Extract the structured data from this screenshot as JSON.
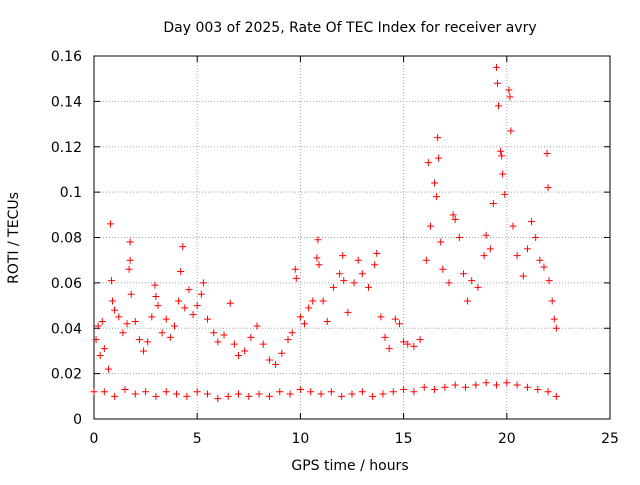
{
  "chart_data": {
    "type": "scatter",
    "title": "Day 003 of 2025, Rate Of TEC Index for receiver avry",
    "xlabel": "GPS time / hours",
    "ylabel": "ROTI / TECUs",
    "xlim": [
      0,
      25
    ],
    "ylim": [
      0,
      0.16
    ],
    "xticks": [
      0,
      5,
      10,
      15,
      20,
      25
    ],
    "xtick_labels": [
      "0",
      "5",
      "10",
      "15",
      "20",
      "25"
    ],
    "yticks": [
      0,
      0.02,
      0.04,
      0.06,
      0.08,
      0.1,
      0.12,
      0.14,
      0.16
    ],
    "ytick_labels": [
      "0",
      "0.02",
      "0.04",
      "0.06",
      "0.08",
      "0.1",
      "0.12",
      "0.14",
      "0.16"
    ],
    "grid": true,
    "legend": "none",
    "marker": "plus",
    "color": "#ff0000",
    "series": [
      {
        "points": [
          [
            0.0,
            0.012
          ],
          [
            0.1,
            0.035
          ],
          [
            0.2,
            0.041
          ],
          [
            0.3,
            0.028
          ],
          [
            0.4,
            0.043
          ],
          [
            0.5,
            0.031
          ],
          [
            0.7,
            0.022
          ],
          [
            0.8,
            0.086
          ],
          [
            0.85,
            0.061
          ],
          [
            0.9,
            0.052
          ],
          [
            1.0,
            0.048
          ],
          [
            1.2,
            0.045
          ],
          [
            1.4,
            0.038
          ],
          [
            1.6,
            0.042
          ],
          [
            1.75,
            0.078
          ],
          [
            1.75,
            0.07
          ],
          [
            1.7,
            0.066
          ],
          [
            1.8,
            0.055
          ],
          [
            2.0,
            0.043
          ],
          [
            2.2,
            0.035
          ],
          [
            2.4,
            0.03
          ],
          [
            2.6,
            0.034
          ],
          [
            2.8,
            0.045
          ],
          [
            2.95,
            0.059
          ],
          [
            3.0,
            0.054
          ],
          [
            3.1,
            0.05
          ],
          [
            3.3,
            0.038
          ],
          [
            3.5,
            0.044
          ],
          [
            3.7,
            0.036
          ],
          [
            3.9,
            0.041
          ],
          [
            4.1,
            0.052
          ],
          [
            4.2,
            0.065
          ],
          [
            4.3,
            0.076
          ],
          [
            4.4,
            0.049
          ],
          [
            4.6,
            0.057
          ],
          [
            4.8,
            0.046
          ],
          [
            5.0,
            0.05
          ],
          [
            5.2,
            0.055
          ],
          [
            5.3,
            0.06
          ],
          [
            5.5,
            0.044
          ],
          [
            5.8,
            0.038
          ],
          [
            6.0,
            0.034
          ],
          [
            6.3,
            0.037
          ],
          [
            6.6,
            0.051
          ],
          [
            6.8,
            0.033
          ],
          [
            7.0,
            0.028
          ],
          [
            7.3,
            0.03
          ],
          [
            7.6,
            0.036
          ],
          [
            7.9,
            0.041
          ],
          [
            8.2,
            0.033
          ],
          [
            8.5,
            0.026
          ],
          [
            8.8,
            0.024
          ],
          [
            9.1,
            0.029
          ],
          [
            9.4,
            0.035
          ],
          [
            9.6,
            0.038
          ],
          [
            9.75,
            0.066
          ],
          [
            9.8,
            0.062
          ],
          [
            10.0,
            0.045
          ],
          [
            10.2,
            0.042
          ],
          [
            10.4,
            0.049
          ],
          [
            10.6,
            0.052
          ],
          [
            10.8,
            0.071
          ],
          [
            10.85,
            0.079
          ],
          [
            10.9,
            0.068
          ],
          [
            11.1,
            0.052
          ],
          [
            11.3,
            0.043
          ],
          [
            11.6,
            0.058
          ],
          [
            11.9,
            0.064
          ],
          [
            12.05,
            0.072
          ],
          [
            12.1,
            0.061
          ],
          [
            12.3,
            0.047
          ],
          [
            12.6,
            0.06
          ],
          [
            12.8,
            0.07
          ],
          [
            13.0,
            0.064
          ],
          [
            13.3,
            0.058
          ],
          [
            13.6,
            0.068
          ],
          [
            13.7,
            0.073
          ],
          [
            13.9,
            0.045
          ],
          [
            14.1,
            0.036
          ],
          [
            14.3,
            0.031
          ],
          [
            14.6,
            0.044
          ],
          [
            14.8,
            0.042
          ],
          [
            15.0,
            0.034
          ],
          [
            15.2,
            0.033
          ],
          [
            15.5,
            0.032
          ],
          [
            15.8,
            0.035
          ],
          [
            16.1,
            0.07
          ],
          [
            16.2,
            0.113
          ],
          [
            16.3,
            0.085
          ],
          [
            16.5,
            0.104
          ],
          [
            16.6,
            0.098
          ],
          [
            16.65,
            0.124
          ],
          [
            16.7,
            0.115
          ],
          [
            16.8,
            0.078
          ],
          [
            16.9,
            0.066
          ],
          [
            17.2,
            0.06
          ],
          [
            17.4,
            0.09
          ],
          [
            17.5,
            0.088
          ],
          [
            17.7,
            0.08
          ],
          [
            17.9,
            0.064
          ],
          [
            18.1,
            0.052
          ],
          [
            18.3,
            0.061
          ],
          [
            18.6,
            0.058
          ],
          [
            18.9,
            0.072
          ],
          [
            19.0,
            0.081
          ],
          [
            19.2,
            0.075
          ],
          [
            19.35,
            0.095
          ],
          [
            19.5,
            0.155
          ],
          [
            19.55,
            0.148
          ],
          [
            19.6,
            0.138
          ],
          [
            19.7,
            0.118
          ],
          [
            19.75,
            0.116
          ],
          [
            19.8,
            0.108
          ],
          [
            19.9,
            0.099
          ],
          [
            20.1,
            0.145
          ],
          [
            20.15,
            0.142
          ],
          [
            20.2,
            0.127
          ],
          [
            20.3,
            0.085
          ],
          [
            20.5,
            0.072
          ],
          [
            20.8,
            0.063
          ],
          [
            21.0,
            0.075
          ],
          [
            21.2,
            0.087
          ],
          [
            21.4,
            0.08
          ],
          [
            21.6,
            0.07
          ],
          [
            21.8,
            0.067
          ],
          [
            21.95,
            0.117
          ],
          [
            22.0,
            0.102
          ],
          [
            22.05,
            0.061
          ],
          [
            22.2,
            0.052
          ],
          [
            22.3,
            0.044
          ],
          [
            22.4,
            0.04
          ],
          [
            0.5,
            0.012
          ],
          [
            1.0,
            0.01
          ],
          [
            1.5,
            0.013
          ],
          [
            2.0,
            0.011
          ],
          [
            2.5,
            0.012
          ],
          [
            3.0,
            0.01
          ],
          [
            3.5,
            0.012
          ],
          [
            4.0,
            0.011
          ],
          [
            4.5,
            0.01
          ],
          [
            5.0,
            0.012
          ],
          [
            5.5,
            0.011
          ],
          [
            6.0,
            0.009
          ],
          [
            6.5,
            0.01
          ],
          [
            7.0,
            0.011
          ],
          [
            7.5,
            0.01
          ],
          [
            8.0,
            0.011
          ],
          [
            8.5,
            0.01
          ],
          [
            9.0,
            0.012
          ],
          [
            9.5,
            0.011
          ],
          [
            10.0,
            0.013
          ],
          [
            10.5,
            0.012
          ],
          [
            11.0,
            0.011
          ],
          [
            11.5,
            0.012
          ],
          [
            12.0,
            0.01
          ],
          [
            12.5,
            0.011
          ],
          [
            13.0,
            0.012
          ],
          [
            13.5,
            0.01
          ],
          [
            14.0,
            0.011
          ],
          [
            14.5,
            0.012
          ],
          [
            15.0,
            0.013
          ],
          [
            15.5,
            0.012
          ],
          [
            16.0,
            0.014
          ],
          [
            16.5,
            0.013
          ],
          [
            17.0,
            0.014
          ],
          [
            17.5,
            0.015
          ],
          [
            18.0,
            0.014
          ],
          [
            18.5,
            0.015
          ],
          [
            19.0,
            0.016
          ],
          [
            19.5,
            0.015
          ],
          [
            20.0,
            0.016
          ],
          [
            20.5,
            0.015
          ],
          [
            21.0,
            0.014
          ],
          [
            21.5,
            0.013
          ],
          [
            22.0,
            0.012
          ],
          [
            22.4,
            0.01
          ]
        ]
      }
    ]
  }
}
